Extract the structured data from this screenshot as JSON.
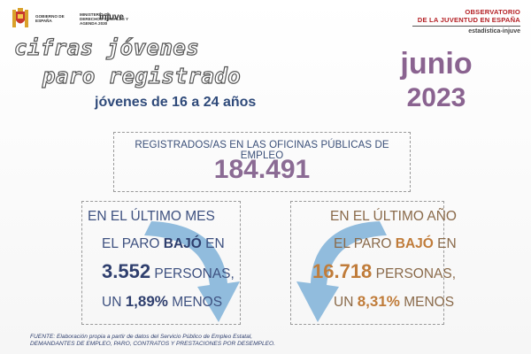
{
  "header": {
    "gov_text": "GOBIERNO DE ESPAÑA",
    "ministry_text": "MINISTERIO DE DERECHOS SOCIALES Y AGENDA 2030",
    "injuve": "injuve",
    "observatory_line1": "OBSERVATORIO",
    "observatory_line2": "DE LA JUVENTUD EN ESPAÑA",
    "observatory_line3": "estadística-injuve"
  },
  "title": {
    "line1": "cifras jóvenes",
    "line2": "paro registrado",
    "subtitle": "jóvenes de 16 a 24 años"
  },
  "period": {
    "month": "junio",
    "year": "2023"
  },
  "registered": {
    "label": "REGISTRADOS/AS EN LAS OFICINAS PÚBLICAS DE EMPLEO",
    "value": "184.491"
  },
  "last_month": {
    "l1": "EN EL ÚLTIMO MES",
    "l2a": "EL PARO ",
    "l2b": "BAJÓ",
    "l2c": " EN",
    "l3a": "3.552",
    "l3b": " PERSONAS,",
    "l4a": "UN ",
    "l4b": "1,89%",
    "l4c": " MENOS"
  },
  "last_year": {
    "l1": "EN EL ÚLTIMO AÑO",
    "l2a": "EL PARO ",
    "l2b": "BAJÓ",
    "l2c": " EN",
    "l3a": "16.718",
    "l3b": " PERSONAS,",
    "l4a": "UN ",
    "l4b": "8,31%",
    "l4c": " MENOS"
  },
  "colors": {
    "arrow": "#7fb2d8",
    "purple": "#8a6390",
    "navy": "#2f4a7a",
    "brown": "#8a6a4a",
    "orange": "#c07c3a"
  },
  "source": {
    "line1": "FUENTE: Elaboración propia a partir de datos del Servicio Público de Empleo Estatal,",
    "line2": "DEMANDANTES DE EMPLEO, PARO, CONTRATOS Y PRESTACIONES POR DESEMPLEO."
  }
}
